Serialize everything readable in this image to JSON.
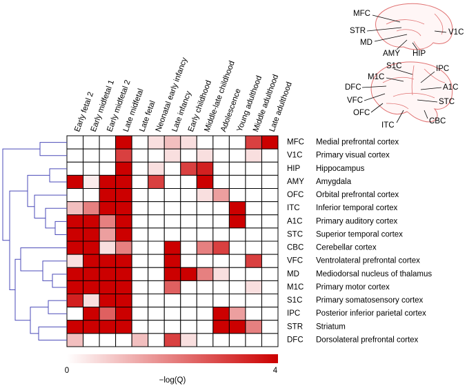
{
  "chart_data": {
    "type": "heatmap",
    "x_categories": [
      "Early fetal 2",
      "Early midfetal 1",
      "Early midfetal 2",
      "Late midfetal",
      "Late fetal",
      "Neonatal early infancy",
      "Late infancy",
      "Early childhood",
      "Middle-late childhood",
      "Adolescence",
      "Young adulthood",
      "Middle adulthood",
      "Late adulthood"
    ],
    "y_categories": [
      "MFC",
      "V1C",
      "HIP",
      "AMY",
      "OFC",
      "ITC",
      "A1C",
      "STC",
      "CBC",
      "VFC",
      "MD",
      "M1C",
      "S1C",
      "IPC",
      "STR",
      "DFC"
    ],
    "y_labels": [
      "Medial prefrontal cortex",
      "Primary visual cortex",
      "Hippocampus",
      "Amygdala",
      "Orbital prefrontal cortex",
      "Inferior temporal cortex",
      "Primary auditory cortex",
      "Superior temporal cortex",
      "Cerebellar cortex",
      "Ventrolateral prefrontal cortex",
      "Mediodorsal nucleus of thalamus",
      "Primary motor cortex",
      "Primary somatosensory cortex",
      "Posterior inferior parietal cortex",
      "Striatum",
      "Dorsolateral prefrontal cortex"
    ],
    "values": [
      [
        0,
        0,
        0,
        4,
        0,
        0.5,
        1,
        0.5,
        0,
        0,
        0,
        3,
        4
      ],
      [
        0,
        0,
        0,
        3,
        0,
        0,
        0.5,
        0,
        0.5,
        0,
        0,
        0.5,
        0
      ],
      [
        0,
        0,
        0,
        4,
        0,
        0.5,
        0,
        3,
        3.5,
        0,
        0,
        0,
        0
      ],
      [
        4,
        0.3,
        4,
        4,
        0,
        3,
        0,
        0,
        4,
        0,
        0,
        0,
        0
      ],
      [
        0,
        0,
        4,
        4,
        0,
        0,
        0,
        0,
        0.5,
        1.5,
        0,
        0,
        0
      ],
      [
        1,
        2,
        4,
        4,
        0,
        0,
        0,
        0,
        0,
        0,
        4,
        0,
        0
      ],
      [
        4,
        4,
        2,
        4,
        0,
        0,
        0,
        0,
        0,
        0,
        4,
        0,
        0
      ],
      [
        4,
        4,
        1.5,
        4,
        0,
        0,
        0,
        0,
        0,
        0,
        0,
        0,
        0
      ],
      [
        4,
        4,
        0.5,
        2,
        0,
        0,
        4,
        0,
        2,
        3,
        0,
        0,
        0
      ],
      [
        0.5,
        4,
        4,
        4,
        0,
        0,
        4,
        0,
        0,
        0,
        0,
        3,
        0
      ],
      [
        4,
        4,
        4,
        4,
        0,
        0,
        4,
        4,
        2,
        0.5,
        0,
        0,
        0
      ],
      [
        4,
        4,
        4,
        4,
        0,
        0,
        2.5,
        0,
        0,
        0,
        0,
        0.5,
        0
      ],
      [
        3.5,
        0.5,
        4,
        4,
        0,
        0,
        0,
        0,
        0,
        0,
        0,
        0,
        0
      ],
      [
        0,
        4,
        2.5,
        4,
        0,
        0,
        0,
        0,
        0,
        4,
        1.5,
        0,
        0
      ],
      [
        4,
        4,
        4,
        4,
        0,
        0,
        0,
        0,
        0,
        4,
        4,
        2,
        0
      ],
      [
        1,
        0,
        0,
        0,
        1,
        0,
        3,
        0.5,
        0,
        0,
        0,
        0,
        0
      ]
    ],
    "color_low": "#ffffff",
    "color_high": "#cc0000",
    "colorbar": {
      "label": "−log(Q)",
      "lim": [
        0,
        4
      ],
      "ticks": [
        0,
        4
      ]
    },
    "annotations": [
      "MFC",
      "STR",
      "MD",
      "AMY",
      "HIP",
      "V1C",
      "S1C",
      "IPC",
      "M1C",
      "DFC",
      "A1C",
      "VFC",
      "STC",
      "OFC",
      "ITC",
      "CBC"
    ]
  }
}
